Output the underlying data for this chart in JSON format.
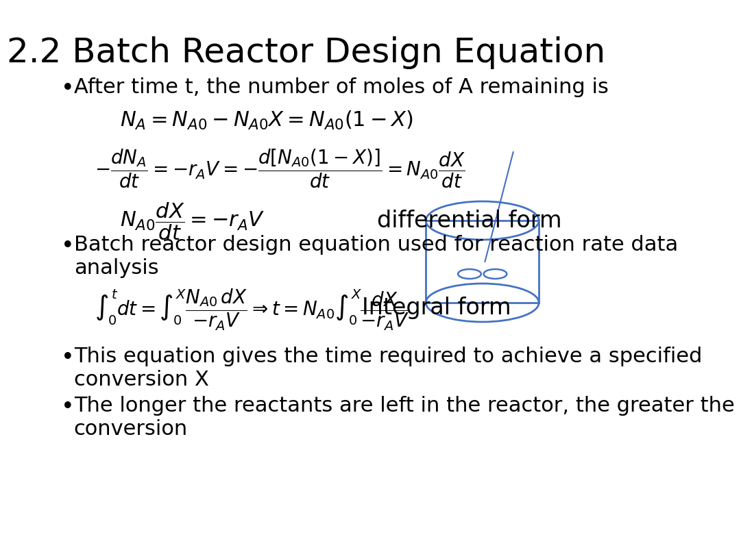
{
  "title": "2.2 Batch Reactor Design Equation",
  "title_fontsize": 36,
  "title_color": "#000000",
  "background_color": "#ffffff",
  "text_color": "#000000",
  "bullet_color": "#000000",
  "reactor_color": "#4472C4",
  "bullet1": "After time t, the number of moles of A remaining is",
  "eq1": "$N_A = N_{A0} - N_{A0}X = N_{A0}(1-X)$",
  "eq2": "$-\\dfrac{dN_A}{dt} = -r_A V = -\\dfrac{d\\left[N_{A0}(1-X)\\right]}{dt} = N_{A0}\\dfrac{dX}{dt}$",
  "eq3": "$N_{A0}\\dfrac{dX}{dt} = -r_A V$",
  "diff_form": "differential form",
  "bullet2": "Batch reactor design equation used for reaction rate data\nanalysis",
  "eq4": "$\\int_0^t dt = \\int_0^X \\dfrac{N_{A0}\\,dX}{-r_A V} \\Rightarrow t = N_{A0}\\int_0^X \\dfrac{dX}{-r_A V}$",
  "int_form": "Integral form",
  "bullet3": "This equation gives the time required to achieve a specified\nconversion X",
  "bullet4": "The longer the reactants are left in the reactor, the greater the\nconversion",
  "font_size_body": 22,
  "font_size_eq": 20,
  "font_size_label": 22
}
